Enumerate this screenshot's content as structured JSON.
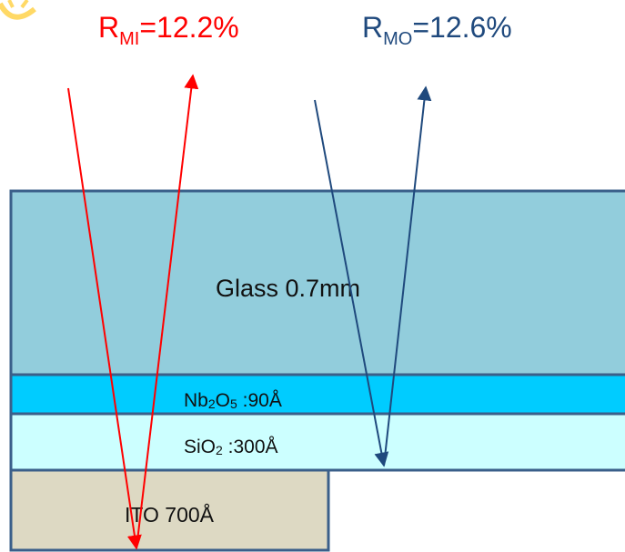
{
  "labels": {
    "r_mi": {
      "base": "R",
      "sub": "MI",
      "value": "=12.2%"
    },
    "r_mo": {
      "base": "R",
      "sub": "MO",
      "value": "=12.6%"
    }
  },
  "layers": {
    "glass": {
      "label": "Glass 0.7mm",
      "color": "#92CDDC"
    },
    "nb2o5": {
      "base1": "Nb",
      "sub1": "2",
      "base2": "O",
      "sub2": "5",
      "tail": " :90Å",
      "color": "#00CCFF"
    },
    "sio2": {
      "base": "SiO",
      "sub": "2",
      "tail": " :300Å",
      "color": "#CCFFFF"
    },
    "ito": {
      "label": "ITO 700Å",
      "color": "#DDD9C3"
    }
  },
  "colors": {
    "outline": "#3A5F8A",
    "ray_inner": "#FF0000",
    "ray_outer": "#1F497D",
    "sun": "#FFD966"
  },
  "icons": {
    "sun": "sun-icon"
  }
}
